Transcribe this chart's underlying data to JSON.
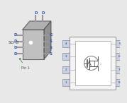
{
  "bg_color": "#e8e8e8",
  "so8_label": "SO-8",
  "pin1_label": "Pin 1",
  "left_pin_labels": [
    "D",
    "D",
    "D",
    "D"
  ],
  "right_pin_labels": [
    "G",
    "S",
    "S",
    "S"
  ],
  "top_pin_labels": [
    "D",
    "D"
  ],
  "schematic_left_pins": [
    "4",
    "3",
    "2",
    "1"
  ],
  "schematic_right_pins": [
    "5",
    "6",
    "7",
    "8"
  ],
  "text_color": "#555555",
  "line_color": "#666666",
  "pin_label_color": "#3355aa",
  "pin_box_fill": "#c8d0e8",
  "pin_box_edge": "#888888",
  "chip_front_color": "#c0c0c0",
  "chip_top_color": "#b0b0b0",
  "chip_right_color": "#909090",
  "chip_edge_color": "#555555",
  "pin_metal_color": "#999999"
}
